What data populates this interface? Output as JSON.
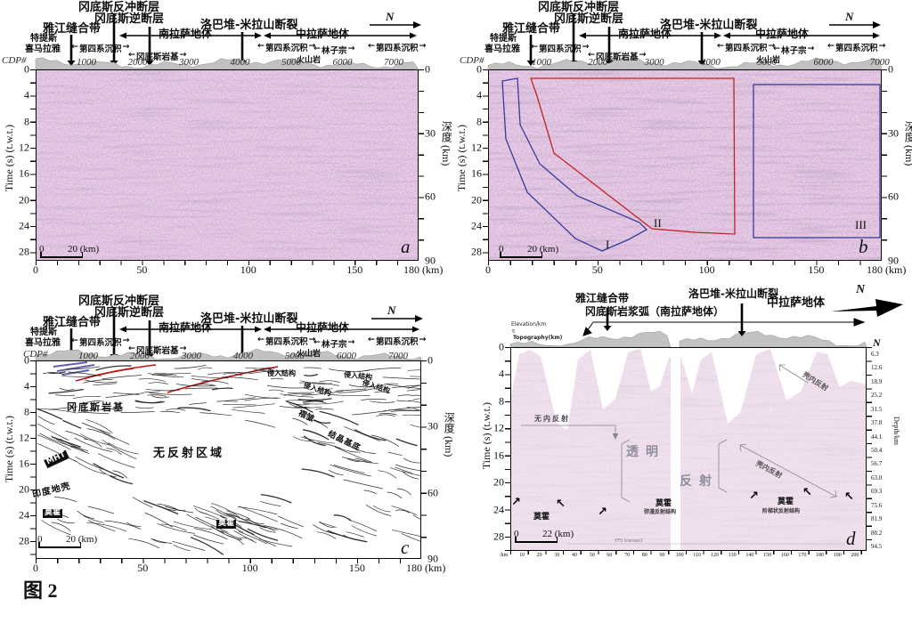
{
  "figure": {
    "caption": "图 2"
  },
  "icons": {
    "north_letter": "N",
    "left_arrow": "←",
    "right_arrow": "→",
    "moho_arrow_ne": "↗",
    "moho_arrow_nw": "↖"
  },
  "colors": {
    "seismic_purple": "#b387b3",
    "seismic_pink": "#e9d7e6",
    "zone_red": "#c22222",
    "zone_blue": "#3a3a9a",
    "thrust_red": "#c01414",
    "topo_gray": "#c2c2c2"
  },
  "header_abc": {
    "gangdese_backthrust": "冈底斯反冲断层",
    "gangdese_thrust": "冈底斯逆断层",
    "yajiang_suture": "雅江缝合带",
    "luobadui_milashan_fault": "洛巴堆-米拉山断裂",
    "tethys_line1": "特提斯",
    "tethys_line2": "喜马拉雅",
    "quaternary": "第四系沉积",
    "south_lhasa": "南拉萨地体",
    "central_lhasa": "中拉萨地体",
    "gangdese_batholith": "冈底斯岩基",
    "linzizong": "林子宗",
    "volcanics": "火山岩"
  },
  "axes_abc": {
    "cdp_label": "CDP#",
    "cdp_ticks": [
      "1000",
      "2000",
      "3000",
      "4000",
      "5000",
      "6000",
      "7000"
    ],
    "time_label": "Time (s) (t.w.t.)",
    "time_ticks": [
      "0",
      "4",
      "8",
      "12",
      "16",
      "20",
      "24",
      "28"
    ],
    "depth_label": "深度 (km)",
    "depth_ticks": [
      "0",
      "30",
      "60",
      "90"
    ],
    "dist_ticks": [
      "0",
      "50",
      "100",
      "150"
    ],
    "dist_end": "180 (km)",
    "scale_start": "0",
    "scale_end": "20 (km)"
  },
  "panel_a": {
    "letter": "a"
  },
  "panel_b": {
    "letter": "b",
    "zone1": "I",
    "zone2": "II",
    "zone3": "III"
  },
  "panel_c": {
    "letter": "c",
    "mht": "MHT",
    "gangdese_batholith": "冈底斯岩基",
    "no_reflection_zone": "无反射区域",
    "india_crust": "印度地壳",
    "moho": "莫霍",
    "intrusive_structure": "侵入结构",
    "fold": "褶皱",
    "crystalline_basement": "结晶基底"
  },
  "panel_d": {
    "letter": "d",
    "header": {
      "yajiang_suture": "雅江缝合带",
      "gangdese_arc": "冈底斯岩浆弧（南拉萨地体）",
      "luobadui_milashan_fault": "洛巴堆-米拉山断裂",
      "central_lhasa": "中拉萨地体"
    },
    "topo": {
      "elevation": "Elevation/km",
      "elev_value": "5",
      "topography": "Topography(km)"
    },
    "labels": {
      "no_internal_reflection": "无内反射",
      "transparent": "透明",
      "reflection": "反射",
      "crustal_reflection": "壳内反射",
      "moho": "莫霍",
      "moho_diffuse": "弥漫反射结构",
      "moho_step": "阶梯状反射结构",
      "yts": "YTS transect"
    },
    "axes": {
      "depth_label": "Depth/km",
      "depth_ticks": [
        "6.3",
        "12.6",
        "18.9",
        "25.2",
        "31.5",
        "37.8",
        "44.1",
        "50.4",
        "56.7",
        "63.0",
        "69.3",
        "75.6",
        "81.9",
        "88.2",
        "94.5"
      ],
      "dist_prefix": "/km",
      "dist_ticks": [
        "10",
        "20",
        "30",
        "40",
        "50",
        "60",
        "70",
        "80",
        "90",
        "100",
        "110",
        "120",
        "130",
        "140",
        "150",
        "160",
        "170",
        "180",
        "190",
        "200"
      ],
      "scale_start": "0",
      "scale_end": "22 (km)"
    }
  }
}
